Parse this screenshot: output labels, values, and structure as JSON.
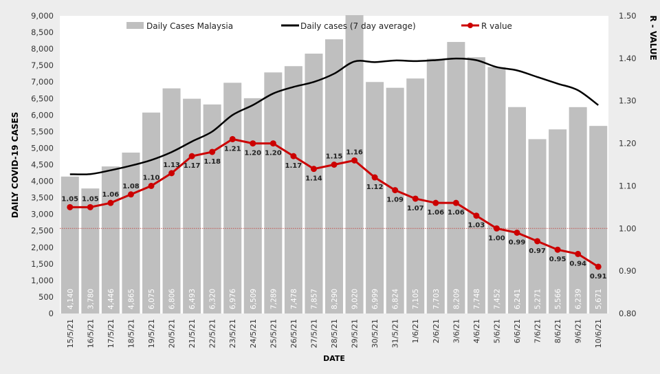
{
  "chart_data": {
    "type": "bar",
    "title": "",
    "xlabel": "DATE",
    "ylabel": "DAILY COVID-19 CASES",
    "y2label": "R - VALUE",
    "ylim": [
      0,
      9000
    ],
    "y2lim": [
      0.8,
      1.5
    ],
    "yticks": [
      "0",
      "500",
      "1,000",
      "1,500",
      "2,000",
      "2,500",
      "3,000",
      "3,500",
      "4,000",
      "4,500",
      "5,000",
      "5,500",
      "6,000",
      "6,500",
      "7,000",
      "7,500",
      "8,000",
      "8,500",
      "9,000"
    ],
    "y2ticks": [
      "0.80",
      "0.90",
      "1.00",
      "1.10",
      "1.20",
      "1.30",
      "1.40",
      "1.50"
    ],
    "grid": false,
    "legend_placement": "top",
    "reference_line": {
      "axis": "y2",
      "value": 1.0,
      "style": "dotted",
      "color": "#c0504d"
    },
    "categories": [
      "15/5/21",
      "16/5/21",
      "17/5/21",
      "18/5/21",
      "19/5/21",
      "20/5/21",
      "21/5/21",
      "22/5/21",
      "23/5/21",
      "24/5/21",
      "25/5/21",
      "26/5/21",
      "27/5/21",
      "28/5/21",
      "29/5/21",
      "30/5/21",
      "31/5/21",
      "1/6/21",
      "2/6/21",
      "3/6/21",
      "4/6/21",
      "5/6/21",
      "6/6/21",
      "7/6/21",
      "8/6/21",
      "9/6/21",
      "10/6/21"
    ],
    "series": [
      {
        "name": "Daily Cases Malaysia",
        "type": "bar",
        "axis": "y",
        "color": "#bfbfbf",
        "values": [
          4140,
          3780,
          4446,
          4865,
          6075,
          6806,
          6493,
          6320,
          6976,
          6509,
          7289,
          7478,
          7857,
          8290,
          9020,
          6999,
          6824,
          7105,
          7703,
          8209,
          7748,
          7452,
          6241,
          5271,
          5566,
          6239,
          5671
        ],
        "labels": [
          "4,140",
          "3,780",
          "4,446",
          "4,865",
          "6,075",
          "6,806",
          "6,493",
          "6,320",
          "6,976",
          "6,509",
          "7,289",
          "7,478",
          "7,857",
          "8,290",
          "9,020",
          "6,999",
          "6,824",
          "7,105",
          "7,703",
          "8,209",
          "7,748",
          "7,452",
          "6,241",
          "5,271",
          "5,566",
          "6,239",
          "5,671"
        ]
      },
      {
        "name": "Daily cases (7 day average)",
        "type": "line",
        "axis": "y",
        "color": "#000000",
        "values": [
          4210,
          4215,
          4330,
          4470,
          4640,
          4880,
          5200,
          5500,
          6000,
          6300,
          6650,
          6850,
          7000,
          7250,
          7620,
          7600,
          7650,
          7630,
          7660,
          7710,
          7660,
          7450,
          7350,
          7150,
          6950,
          6750,
          6300
        ]
      },
      {
        "name": "R value",
        "type": "line",
        "axis": "y2",
        "color": "#cc0000",
        "values": [
          1.05,
          1.05,
          1.06,
          1.08,
          1.1,
          1.13,
          1.17,
          1.18,
          1.21,
          1.2,
          1.2,
          1.17,
          1.14,
          1.15,
          1.16,
          1.12,
          1.09,
          1.07,
          1.06,
          1.06,
          1.03,
          1.0,
          0.99,
          0.97,
          0.95,
          0.94,
          0.91
        ],
        "labels": [
          "1.05",
          "1.05",
          "1.06",
          "1.08",
          "1.10",
          "1.13",
          "1.17",
          "1.18",
          "1.21",
          "1.20",
          "1.20",
          "1.17",
          "1.14",
          "1.15",
          "1.16",
          "1.12",
          "1.09",
          "1.07",
          "1.06",
          "1.06",
          "1.03",
          "1.00",
          "0.99",
          "0.97",
          "0.95",
          "0.94",
          "0.91"
        ]
      }
    ]
  }
}
